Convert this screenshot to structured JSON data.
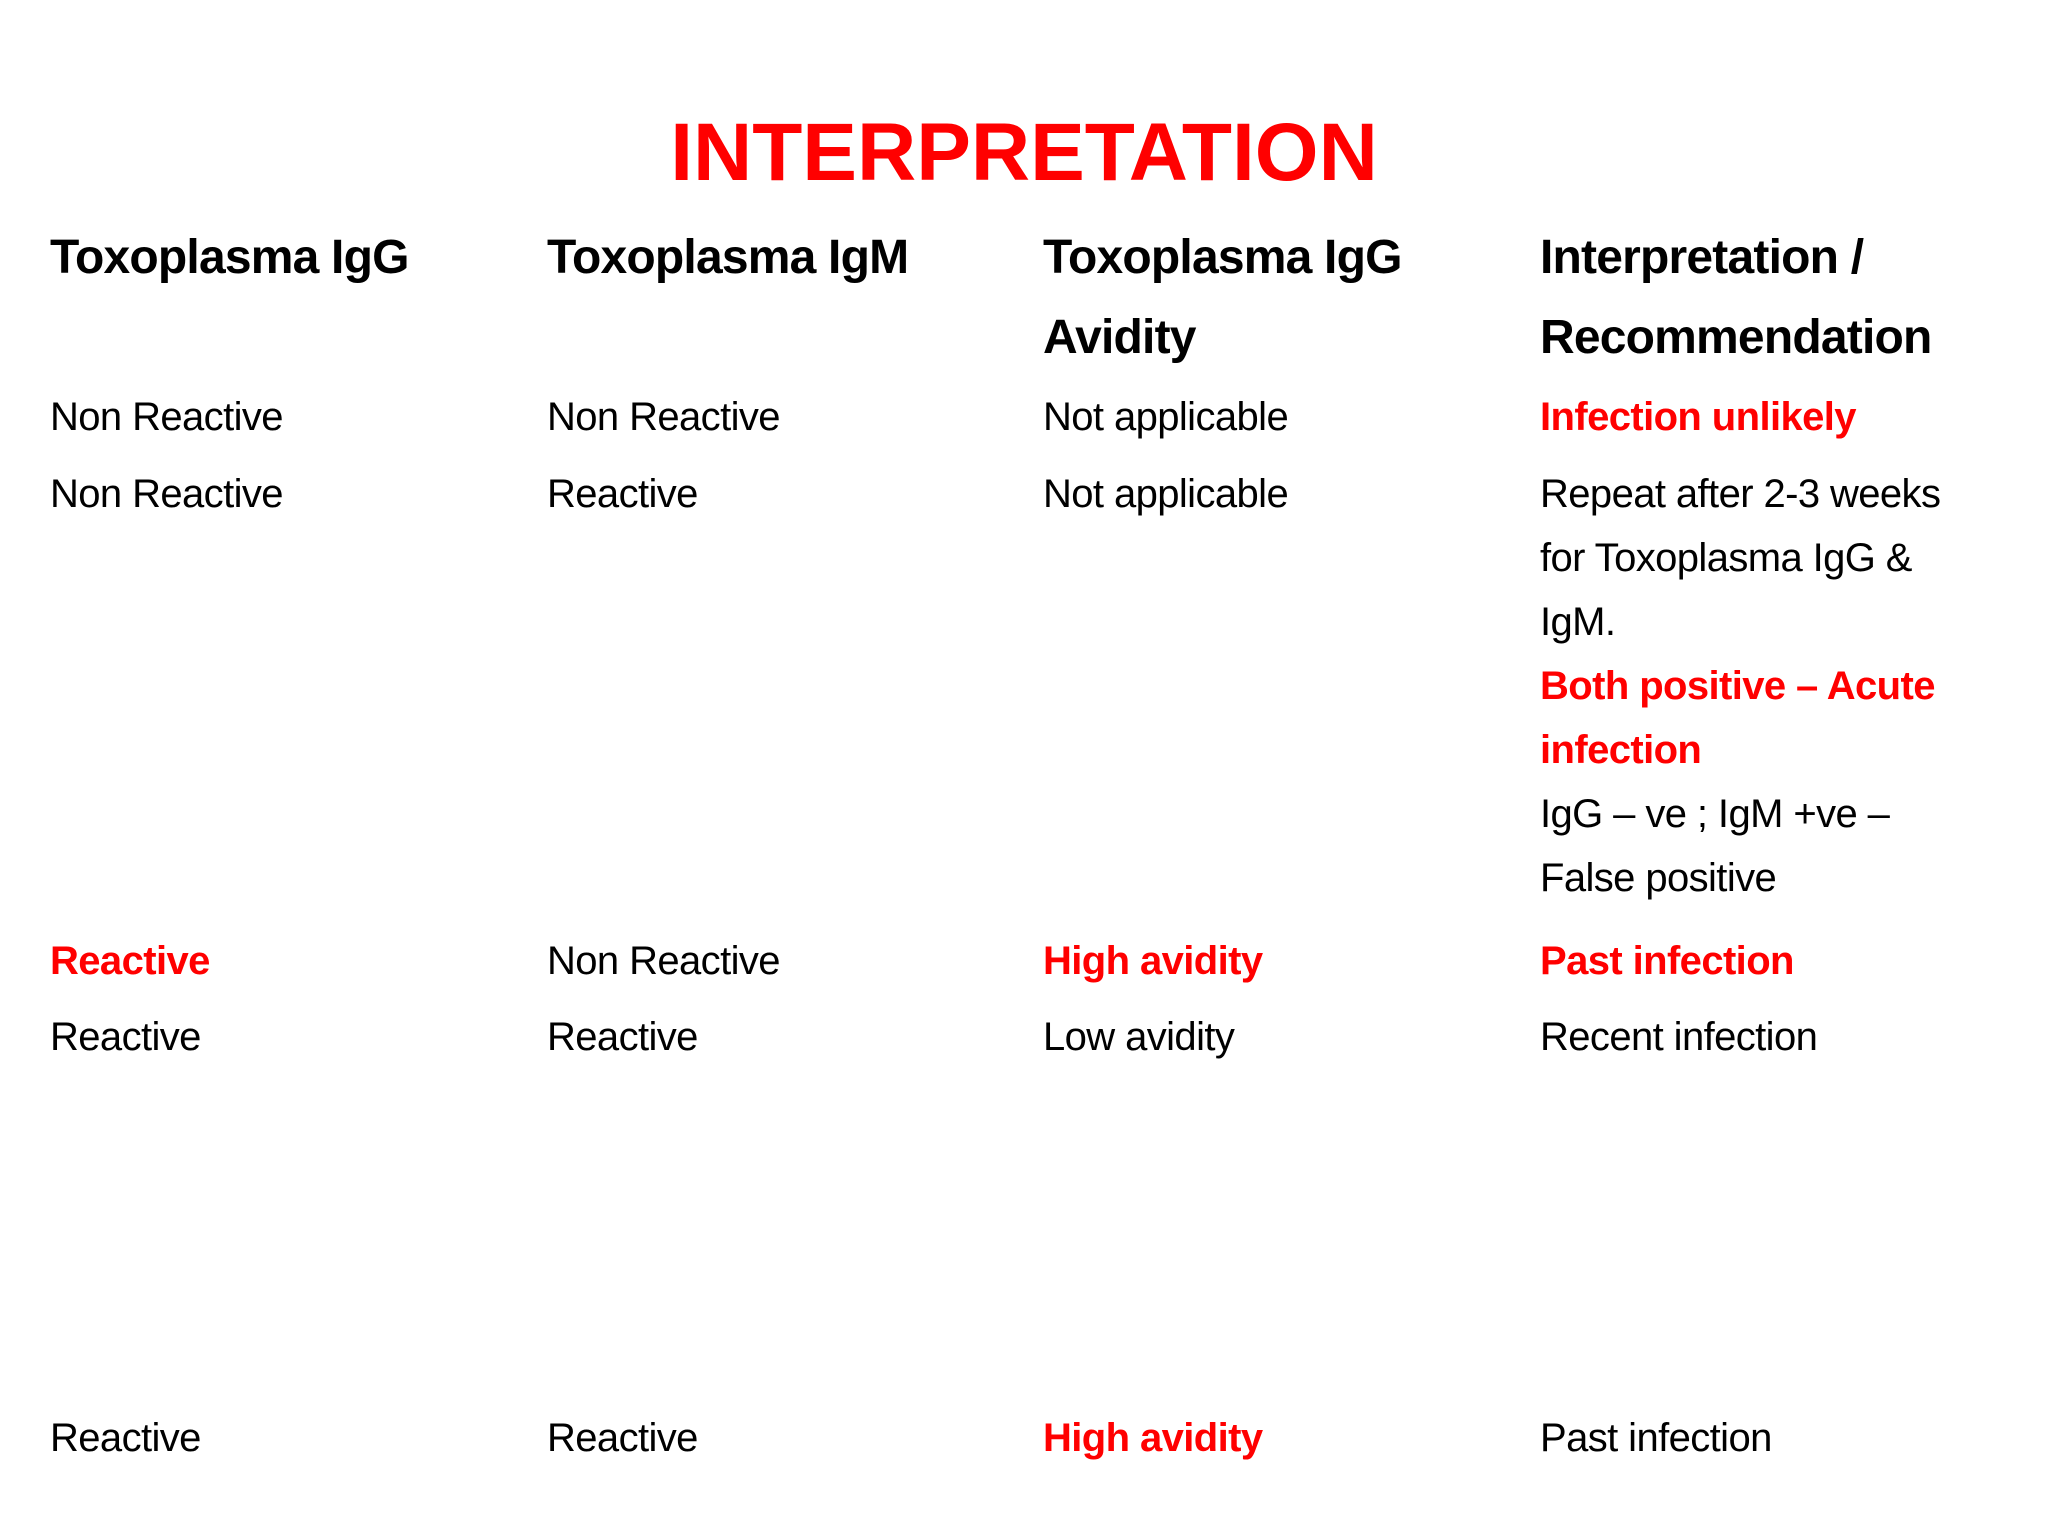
{
  "title": "INTERPRETATION",
  "colors": {
    "accent": "#FF0000",
    "text": "#000000",
    "background": "#FFFFFF"
  },
  "headers": [
    {
      "lines": [
        "Toxoplasma IgG"
      ]
    },
    {
      "lines": [
        "Toxoplasma IgM"
      ]
    },
    {
      "lines": [
        "Toxoplasma IgG",
        "Avidity"
      ]
    },
    {
      "lines": [
        "Interpretation /",
        "Recommendation"
      ]
    }
  ],
  "rows": [
    {
      "igg": {
        "text": "Non Reactive",
        "highlight": false
      },
      "igm": {
        "text": "Non Reactive",
        "highlight": false
      },
      "avidity": {
        "text": "Not applicable",
        "highlight": false
      },
      "interpretation": [
        {
          "text": "Infection unlikely",
          "highlight": true
        }
      ]
    },
    {
      "igg": {
        "text": "Non Reactive",
        "highlight": false
      },
      "igm": {
        "text": "Reactive",
        "highlight": false
      },
      "avidity": {
        "text": "Not applicable",
        "highlight": false
      },
      "interpretation": [
        {
          "text": "Repeat after 2-3 weeks",
          "highlight": false
        },
        {
          "text": "for Toxoplasma IgG &",
          "highlight": false
        },
        {
          "text": "IgM.",
          "highlight": false
        },
        {
          "text": "Both positive – Acute",
          "highlight": true
        },
        {
          "text": "infection",
          "highlight": true
        },
        {
          "text": "IgG – ve ; IgM +ve –",
          "highlight": false
        },
        {
          "text": "False positive",
          "highlight": false
        }
      ]
    },
    {
      "igg": {
        "text": "Reactive",
        "highlight": true
      },
      "igm": {
        "text": "Non Reactive",
        "highlight": false
      },
      "avidity": {
        "text": "High avidity",
        "highlight": true
      },
      "interpretation": [
        {
          "text": "Past infection",
          "highlight": true
        }
      ]
    },
    {
      "igg": {
        "text": "Reactive",
        "highlight": false
      },
      "igm": {
        "text": "Reactive",
        "highlight": false
      },
      "avidity": {
        "text": "Low avidity",
        "highlight": false
      },
      "interpretation": [
        {
          "text": "Recent infection",
          "highlight": false
        }
      ]
    },
    {
      "igg": {
        "text": "Reactive",
        "highlight": false
      },
      "igm": {
        "text": "Reactive",
        "highlight": false
      },
      "avidity": {
        "text": "High avidity",
        "highlight": true
      },
      "interpretation": [
        {
          "text": "Past infection",
          "highlight": false
        }
      ]
    }
  ]
}
